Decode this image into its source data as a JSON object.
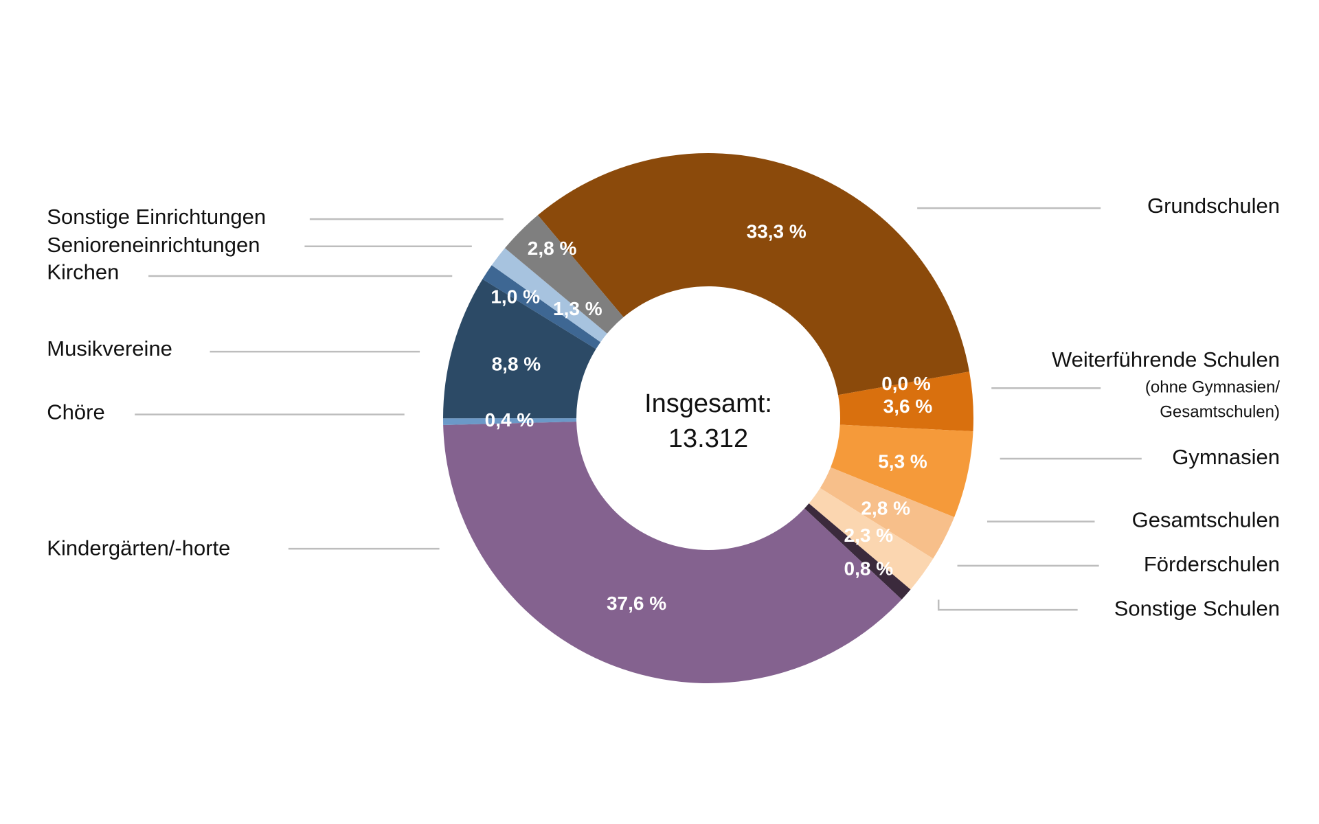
{
  "chart_data": {
    "type": "donut",
    "center_text": [
      "Insgesamt:",
      "13.312"
    ],
    "categories": [
      "Grundschulen",
      null,
      "Weiterführende Schulen",
      "Gymnasien",
      "Gesamtschulen",
      "Förderschulen",
      "Sonstige Schulen",
      "Kindergärten/-horte",
      "Chöre",
      "Musikvereine",
      "Kirchen",
      "Senioreneinrichtungen",
      "Sonstige Einrichtungen"
    ],
    "annotations": [
      "(ohne Gymnasien/",
      "Gesamtschulen)"
    ],
    "values": [
      33.3,
      0.0,
      3.6,
      5.3,
      2.8,
      2.3,
      0.8,
      37.6,
      0.4,
      8.8,
      1.0,
      1.3,
      2.8
    ],
    "value_labels": [
      "33,3 %",
      "0,0 %",
      "3,6 %",
      "5,3 %",
      "2,8 %",
      "2,3 %",
      "0,8 %",
      "37,6 %",
      "0,4 %",
      "8,8 %",
      "1,0 %",
      "1,3 %",
      "2,8 %"
    ],
    "colors": [
      "#8b4a0b",
      "#c86a10",
      "#d9700e",
      "#f59a3a",
      "#f7bf8a",
      "#fbd6b0",
      "#3b2a3c",
      "#84628f",
      "#6b99c8",
      "#2c4a66",
      "#3e6793",
      "#a7c3df",
      "#7f7f7f"
    ]
  }
}
